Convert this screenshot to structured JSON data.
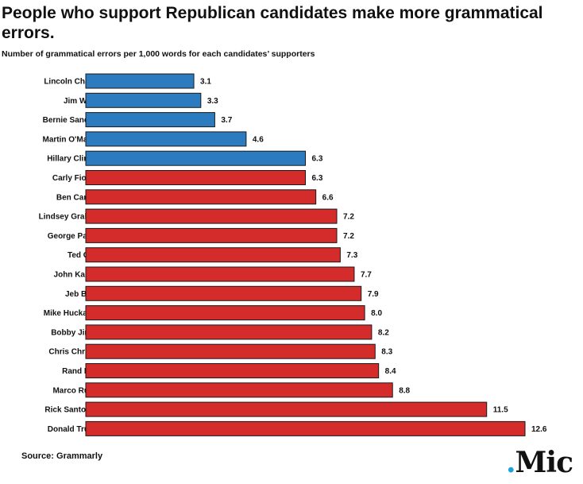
{
  "title": "People who support Republican candidates make more grammatical errors.",
  "subtitle": "Number of grammatical errors per 1,000 words for each candidates’ supporters",
  "source": "Source: Grammarly",
  "logo": {
    "dot": ".",
    "text": "Mic"
  },
  "colors": {
    "democrat": "#2c7bbf",
    "republican": "#d42b2b",
    "logo_dot": "#1ba3e0"
  },
  "chart_data": {
    "type": "bar",
    "orientation": "horizontal",
    "title": "People who support Republican candidates make more grammatical errors.",
    "subtitle": "Number of grammatical errors per 1,000 words for each candidates’ supporters",
    "categories": [
      "Lincoln Chafee",
      "Jim Webb",
      "Bernie Sanders",
      "Martin O'Malley",
      "Hillary Clinton",
      "Carly Fiorina",
      "Ben Carson",
      "Lindsey Graham",
      "George Pataki",
      "Ted Cruz",
      "John Kasich",
      "Jeb Bush",
      "Mike Huckabee",
      "Bobby Jindal",
      "Chris Christie",
      "Rand Paul",
      "Marco Rubio",
      "Rick Santorum",
      "Donald Trump"
    ],
    "values": [
      3.1,
      3.3,
      3.7,
      4.6,
      6.3,
      6.3,
      6.6,
      7.2,
      7.2,
      7.3,
      7.7,
      7.9,
      8.0,
      8.2,
      8.3,
      8.4,
      8.8,
      11.5,
      12.6
    ],
    "value_labels": [
      "3.1",
      "3.3",
      "3.7",
      "4.6",
      "6.3",
      "6.3",
      "6.6",
      "7.2",
      "7.2",
      "7.3",
      "7.7",
      "7.9",
      "8.0",
      "8.2",
      "8.3",
      "8.4",
      "8.8",
      "11.5",
      "12.6"
    ],
    "party": [
      "democrat",
      "democrat",
      "democrat",
      "democrat",
      "democrat",
      "republican",
      "republican",
      "republican",
      "republican",
      "republican",
      "republican",
      "republican",
      "republican",
      "republican",
      "republican",
      "republican",
      "republican",
      "republican",
      "republican"
    ],
    "xlim": [
      0,
      12.6
    ],
    "grid": false,
    "legend": "none"
  }
}
